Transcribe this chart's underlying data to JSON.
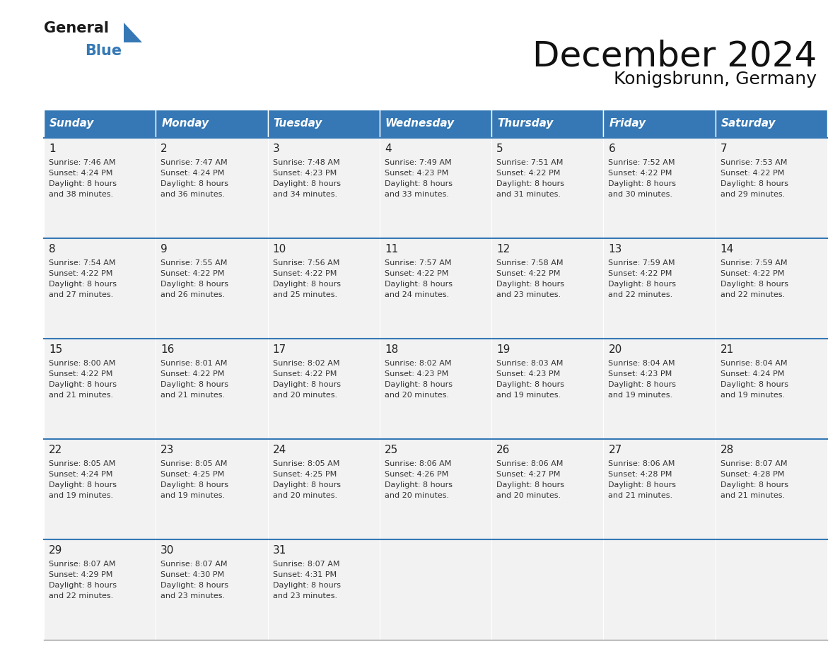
{
  "title": "December 2024",
  "subtitle": "Konigsbrunn, Germany",
  "header_color": "#3578b5",
  "header_text_color": "#ffffff",
  "cell_bg_color": "#f2f2f2",
  "border_color": "#3578b5",
  "text_color": "#333333",
  "day_names": [
    "Sunday",
    "Monday",
    "Tuesday",
    "Wednesday",
    "Thursday",
    "Friday",
    "Saturday"
  ],
  "weeks": [
    [
      {
        "day": 1,
        "sunrise": "7:46 AM",
        "sunset": "4:24 PM",
        "daylight": "8 hours and 38 minutes."
      },
      {
        "day": 2,
        "sunrise": "7:47 AM",
        "sunset": "4:24 PM",
        "daylight": "8 hours and 36 minutes."
      },
      {
        "day": 3,
        "sunrise": "7:48 AM",
        "sunset": "4:23 PM",
        "daylight": "8 hours and 34 minutes."
      },
      {
        "day": 4,
        "sunrise": "7:49 AM",
        "sunset": "4:23 PM",
        "daylight": "8 hours and 33 minutes."
      },
      {
        "day": 5,
        "sunrise": "7:51 AM",
        "sunset": "4:22 PM",
        "daylight": "8 hours and 31 minutes."
      },
      {
        "day": 6,
        "sunrise": "7:52 AM",
        "sunset": "4:22 PM",
        "daylight": "8 hours and 30 minutes."
      },
      {
        "day": 7,
        "sunrise": "7:53 AM",
        "sunset": "4:22 PM",
        "daylight": "8 hours and 29 minutes."
      }
    ],
    [
      {
        "day": 8,
        "sunrise": "7:54 AM",
        "sunset": "4:22 PM",
        "daylight": "8 hours and 27 minutes."
      },
      {
        "day": 9,
        "sunrise": "7:55 AM",
        "sunset": "4:22 PM",
        "daylight": "8 hours and 26 minutes."
      },
      {
        "day": 10,
        "sunrise": "7:56 AM",
        "sunset": "4:22 PM",
        "daylight": "8 hours and 25 minutes."
      },
      {
        "day": 11,
        "sunrise": "7:57 AM",
        "sunset": "4:22 PM",
        "daylight": "8 hours and 24 minutes."
      },
      {
        "day": 12,
        "sunrise": "7:58 AM",
        "sunset": "4:22 PM",
        "daylight": "8 hours and 23 minutes."
      },
      {
        "day": 13,
        "sunrise": "7:59 AM",
        "sunset": "4:22 PM",
        "daylight": "8 hours and 22 minutes."
      },
      {
        "day": 14,
        "sunrise": "7:59 AM",
        "sunset": "4:22 PM",
        "daylight": "8 hours and 22 minutes."
      }
    ],
    [
      {
        "day": 15,
        "sunrise": "8:00 AM",
        "sunset": "4:22 PM",
        "daylight": "8 hours and 21 minutes."
      },
      {
        "day": 16,
        "sunrise": "8:01 AM",
        "sunset": "4:22 PM",
        "daylight": "8 hours and 21 minutes."
      },
      {
        "day": 17,
        "sunrise": "8:02 AM",
        "sunset": "4:22 PM",
        "daylight": "8 hours and 20 minutes."
      },
      {
        "day": 18,
        "sunrise": "8:02 AM",
        "sunset": "4:23 PM",
        "daylight": "8 hours and 20 minutes."
      },
      {
        "day": 19,
        "sunrise": "8:03 AM",
        "sunset": "4:23 PM",
        "daylight": "8 hours and 19 minutes."
      },
      {
        "day": 20,
        "sunrise": "8:04 AM",
        "sunset": "4:23 PM",
        "daylight": "8 hours and 19 minutes."
      },
      {
        "day": 21,
        "sunrise": "8:04 AM",
        "sunset": "4:24 PM",
        "daylight": "8 hours and 19 minutes."
      }
    ],
    [
      {
        "day": 22,
        "sunrise": "8:05 AM",
        "sunset": "4:24 PM",
        "daylight": "8 hours and 19 minutes."
      },
      {
        "day": 23,
        "sunrise": "8:05 AM",
        "sunset": "4:25 PM",
        "daylight": "8 hours and 19 minutes."
      },
      {
        "day": 24,
        "sunrise": "8:05 AM",
        "sunset": "4:25 PM",
        "daylight": "8 hours and 20 minutes."
      },
      {
        "day": 25,
        "sunrise": "8:06 AM",
        "sunset": "4:26 PM",
        "daylight": "8 hours and 20 minutes."
      },
      {
        "day": 26,
        "sunrise": "8:06 AM",
        "sunset": "4:27 PM",
        "daylight": "8 hours and 20 minutes."
      },
      {
        "day": 27,
        "sunrise": "8:06 AM",
        "sunset": "4:28 PM",
        "daylight": "8 hours and 21 minutes."
      },
      {
        "day": 28,
        "sunrise": "8:07 AM",
        "sunset": "4:28 PM",
        "daylight": "8 hours and 21 minutes."
      }
    ],
    [
      {
        "day": 29,
        "sunrise": "8:07 AM",
        "sunset": "4:29 PM",
        "daylight": "8 hours and 22 minutes."
      },
      {
        "day": 30,
        "sunrise": "8:07 AM",
        "sunset": "4:30 PM",
        "daylight": "8 hours and 23 minutes."
      },
      {
        "day": 31,
        "sunrise": "8:07 AM",
        "sunset": "4:31 PM",
        "daylight": "8 hours and 23 minutes."
      },
      null,
      null,
      null,
      null
    ]
  ],
  "logo_text1": "General",
  "logo_text2": "Blue",
  "logo_color1": "#1a1a1a",
  "logo_color2": "#3578b5",
  "logo_arrow_color": "#3578b5",
  "title_fontsize": 36,
  "subtitle_fontsize": 18,
  "header_fontsize": 11,
  "day_num_fontsize": 11,
  "cell_text_fontsize": 8
}
